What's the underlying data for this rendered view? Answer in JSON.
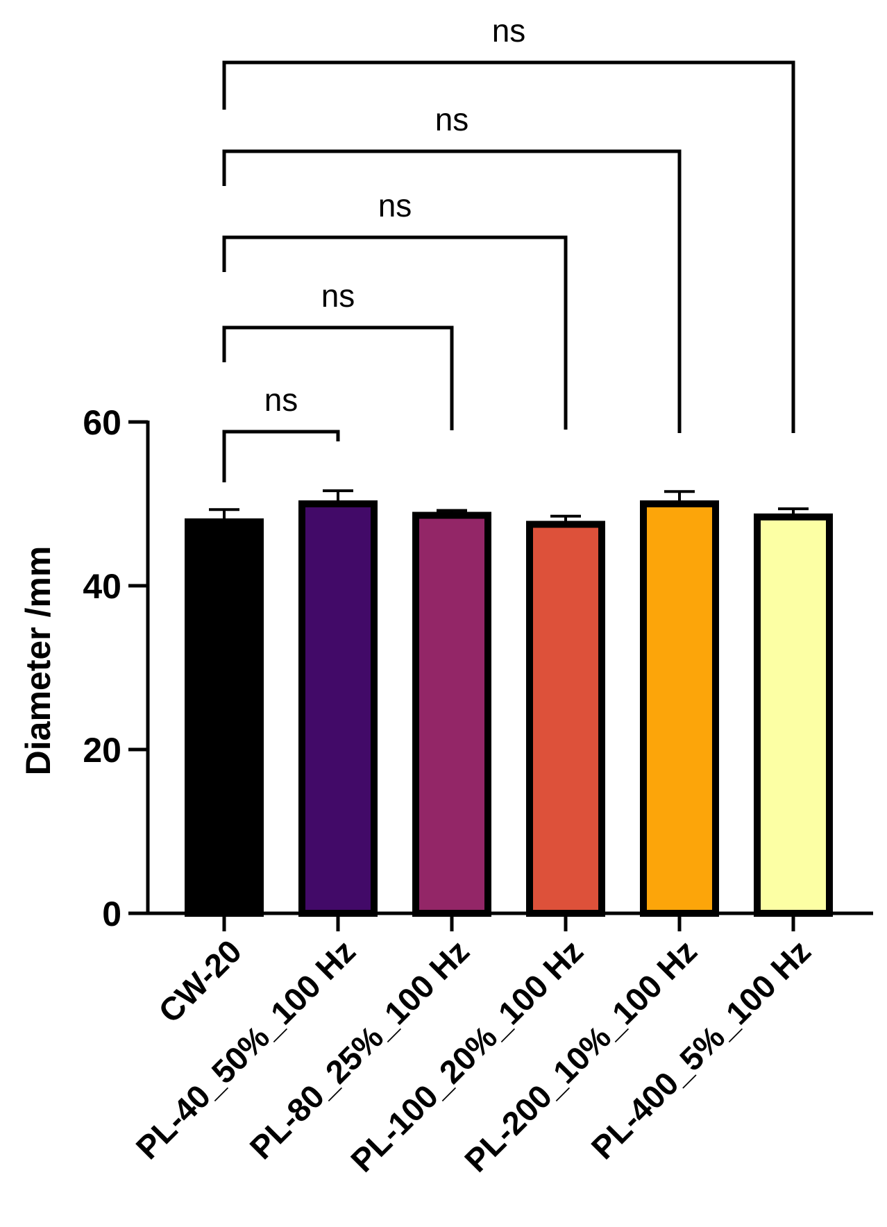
{
  "chart_data": {
    "type": "bar",
    "title": "",
    "xlabel": "",
    "ylabel": "Diameter /mm",
    "ylim": [
      0,
      60
    ],
    "yticks": [
      0,
      20,
      40,
      60
    ],
    "grid": false,
    "categories": [
      "CW-20",
      "PL-40_50%_100 Hz",
      "PL-80_25%_100 Hz",
      "PL-100_20%_100 Hz",
      "PL-200_10%_100 Hz",
      "PL-400_5%_100 Hz"
    ],
    "values": [
      47.8,
      50.0,
      48.6,
      47.5,
      50.0,
      48.4
    ],
    "errors": [
      1.5,
      1.6,
      0.6,
      1.0,
      1.5,
      1.0
    ],
    "colors": [
      "#000000",
      "#420A68",
      "#932667",
      "#DD513A",
      "#FCA50A",
      "#FCFFA4"
    ],
    "comparisons": [
      {
        "from": 0,
        "to": 1,
        "label": "ns"
      },
      {
        "from": 0,
        "to": 2,
        "label": "ns"
      },
      {
        "from": 0,
        "to": 3,
        "label": "ns"
      },
      {
        "from": 0,
        "to": 4,
        "label": "ns"
      },
      {
        "from": 0,
        "to": 5,
        "label": "ns"
      }
    ]
  }
}
